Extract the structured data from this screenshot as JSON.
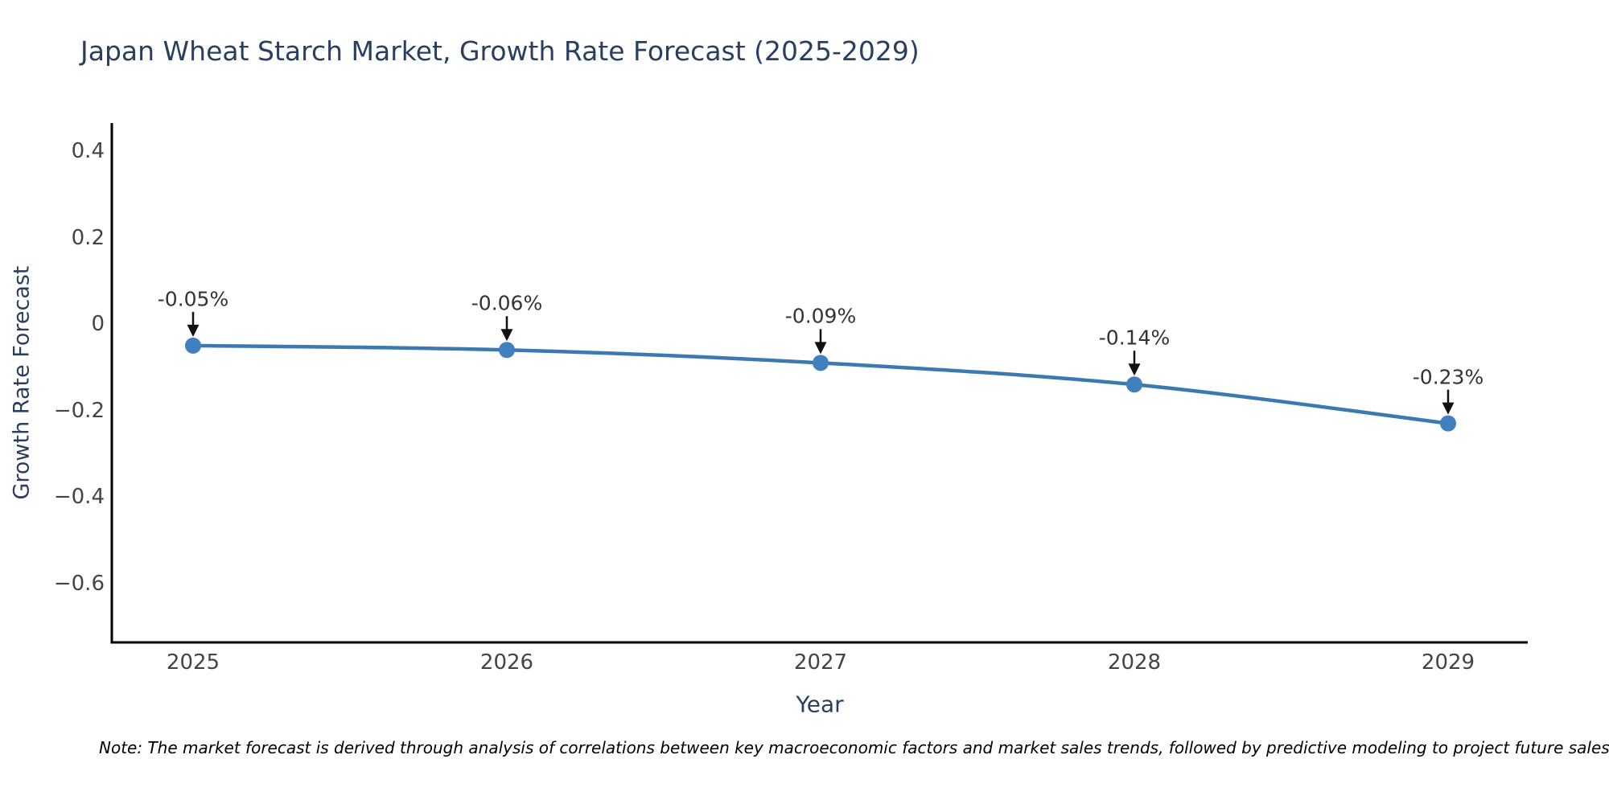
{
  "title": "Japan Wheat Starch Market, Growth Rate Forecast (2025-2029)",
  "note": "Note: The market forecast is derived through analysis of correlations between key macroeconomic factors and market sales trends, followed by predictive modeling to project future sales.",
  "colors": {
    "background": "#ffffff",
    "title": "#2a3f5f",
    "axis_title": "#2a3f5f",
    "tick_label": "#444444",
    "axis_line": "#000000",
    "series_line": "#3c79b0",
    "marker": "#4080bf",
    "arrow": "#111111",
    "annotation_text": "#333333"
  },
  "chart_data": {
    "type": "line",
    "title": "Japan Wheat Starch Market, Growth Rate Forecast (2025-2029)",
    "xlabel": "Year",
    "ylabel": "Growth Rate Forecast",
    "x": [
      2025,
      2026,
      2027,
      2028,
      2029
    ],
    "y": [
      -0.05,
      -0.06,
      -0.09,
      -0.14,
      -0.23
    ],
    "point_labels": [
      "-0.05%",
      "-0.06%",
      "-0.09%",
      "-0.14%",
      "-0.23%"
    ],
    "xtick_labels": [
      "2025",
      "2026",
      "2027",
      "2028",
      "2029"
    ],
    "yticks": [
      0.4,
      0.2,
      0,
      -0.2,
      -0.4,
      -0.6
    ],
    "ytick_labels": [
      "0.4",
      "0.2",
      "0",
      "−0.2",
      "−0.4",
      "−0.6"
    ],
    "ylim": [
      -0.737,
      0.465
    ],
    "grid": false,
    "legend": false,
    "marker": "circle",
    "annotations_have_arrows": true
  }
}
